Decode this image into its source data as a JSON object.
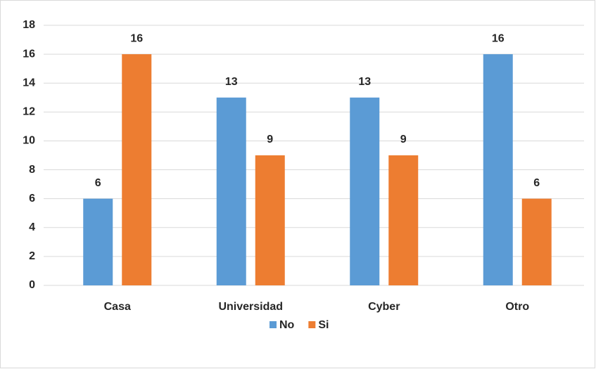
{
  "chart_data": {
    "type": "bar",
    "categories": [
      "Casa",
      "Universidad",
      "Cyber",
      "Otro"
    ],
    "series": [
      {
        "name": "No",
        "color": "#5b9bd5",
        "values": [
          6,
          13,
          13,
          16
        ]
      },
      {
        "name": "Si",
        "color": "#ed7d31",
        "values": [
          16,
          9,
          9,
          6
        ]
      }
    ],
    "ylim": [
      0,
      18
    ],
    "yticks": [
      0,
      2,
      4,
      6,
      8,
      10,
      12,
      14,
      16,
      18
    ],
    "grid": true,
    "legend": "bottom"
  }
}
